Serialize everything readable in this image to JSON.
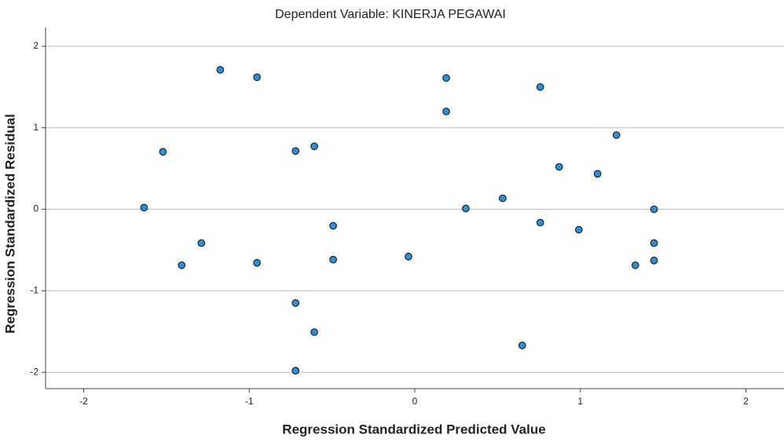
{
  "chart_data": {
    "type": "scatter",
    "title": "Dependent Variable: KINERJA PEGAWAI",
    "x_label": "Regression Standardized Predicted Value",
    "y_label": "Regression Standardized Residual",
    "color": "#2b8fd9",
    "edge_color": "#1a1a1a",
    "grid": true,
    "xlim": [
      -2.23,
      2.23
    ],
    "xticks": [
      -2,
      -1,
      0,
      1,
      2
    ],
    "ylim": [
      -2.2,
      2.23
    ],
    "yticks": [
      -2,
      -1,
      0,
      1,
      2
    ],
    "x": [
      -1.175,
      -0.953,
      0.19,
      0.758,
      0.19,
      1.218,
      -1.521,
      -0.72,
      -0.607,
      0.872,
      1.104,
      0.531,
      -1.635,
      0.308,
      1.445,
      0.758,
      -0.493,
      0.991,
      -1.289,
      1.445,
      -0.038,
      -0.493,
      -0.953,
      1.445,
      -1.408,
      1.332,
      -0.72,
      -0.607,
      0.649,
      -0.72
    ],
    "values": [
      1.71,
      1.62,
      1.61,
      1.5,
      1.2,
      0.91,
      0.705,
      0.715,
      0.773,
      0.52,
      0.435,
      0.135,
      0.02,
      0.01,
      0.0,
      -0.164,
      -0.203,
      -0.251,
      -0.415,
      -0.415,
      -0.58,
      -0.618,
      -0.657,
      -0.628,
      -0.686,
      -0.686,
      -1.15,
      -1.507,
      -1.67,
      -1.98
    ]
  }
}
